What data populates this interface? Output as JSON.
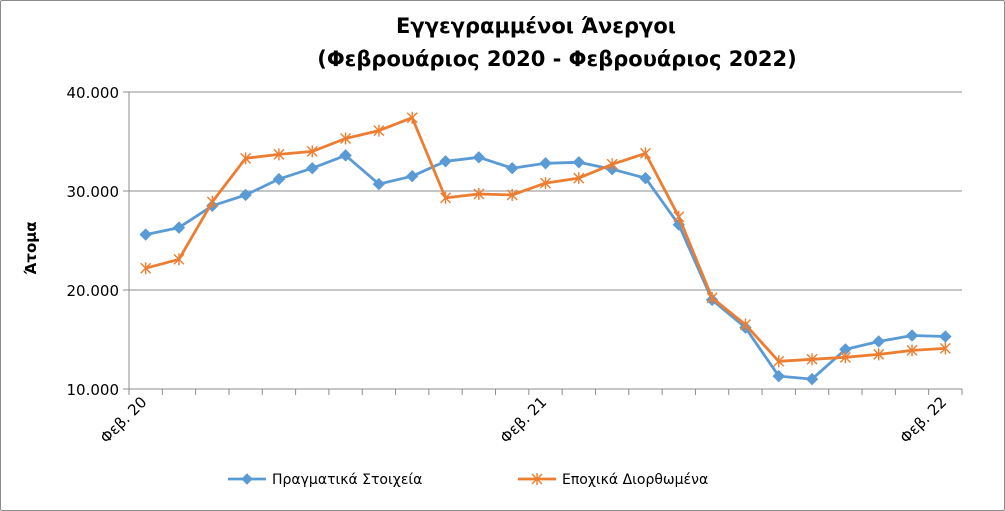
{
  "chart_data": {
    "type": "line",
    "title": "Εγγεγραμμένοι Άνεργοι",
    "subtitle": "(Φεβρουάριος 2020 - Φεβρουάριος 2022)",
    "xlabel": "",
    "ylabel": "Άτομα",
    "ylim": [
      10000,
      40000
    ],
    "yticks": [
      10000,
      20000,
      30000,
      40000
    ],
    "ytick_labels": [
      "10.000",
      "20.000",
      "30.000",
      "40.000"
    ],
    "x_tick_labels": [
      {
        "index": 0,
        "label": "Φεβ. 20"
      },
      {
        "index": 12,
        "label": "Φεβ. 21"
      },
      {
        "index": 24,
        "label": "Φεβ. 22"
      }
    ],
    "grid": true,
    "legend_position": "bottom",
    "series": [
      {
        "name": "Πραγματικά Στοιχεία",
        "color": "#5b9bd5",
        "marker": "diamond",
        "values": [
          25600,
          26300,
          28500,
          29600,
          31200,
          32300,
          33600,
          30700,
          31500,
          33000,
          33400,
          32300,
          32800,
          32900,
          32200,
          31300,
          26600,
          19000,
          16200,
          11300,
          11000,
          14000,
          14800,
          15400,
          15300
        ]
      },
      {
        "name": "Εποχικά Διορθωμένα",
        "color": "#ed7d31",
        "marker": "star",
        "values": [
          22200,
          23100,
          28900,
          33300,
          33700,
          34000,
          35300,
          36100,
          37400,
          29300,
          29700,
          29600,
          30800,
          31300,
          32700,
          33800,
          27400,
          19200,
          16500,
          12800,
          13000,
          13200,
          13500,
          13900,
          14100
        ]
      }
    ]
  }
}
